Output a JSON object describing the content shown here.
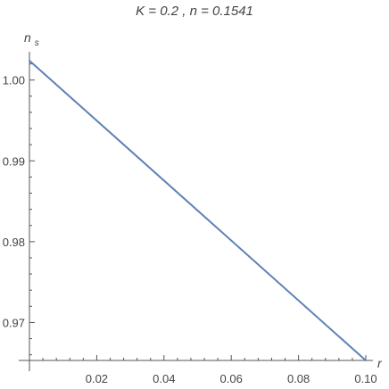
{
  "chart_data": {
    "type": "line",
    "title": "K = 0.2 , n = 0.1541",
    "xlabel": "r",
    "ylabel": "n",
    "ylabel_subscript": "s",
    "x": [
      0.0,
      0.1
    ],
    "series": [
      {
        "values": [
          1.0024,
          0.9653
        ],
        "color": "#5e81b5"
      }
    ],
    "xlim": [
      0.0,
      0.1
    ],
    "ylim": [
      0.9653,
      1.0035
    ],
    "xticks": [
      "0.02",
      "0.04",
      "0.06",
      "0.08",
      "0.10"
    ],
    "yticks": [
      "0.97",
      "0.98",
      "0.99",
      "1.00"
    ],
    "grid": false
  }
}
